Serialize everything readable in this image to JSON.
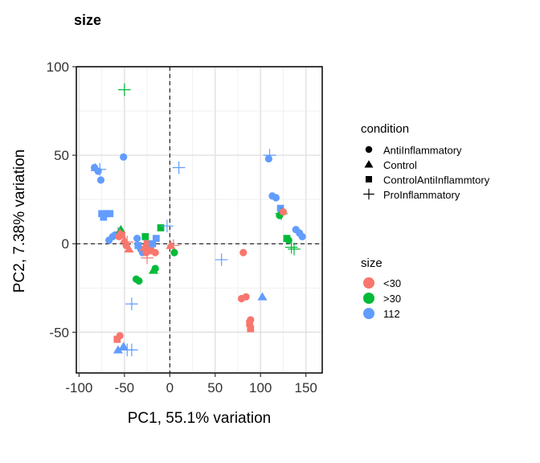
{
  "chart_data": {
    "type": "scatter",
    "title": "size",
    "xlabel": "PC1, 55.1% variation",
    "ylabel": "PC2, 7.38% variation",
    "xlim": [
      -103,
      168
    ],
    "ylim": [
      -73,
      100
    ],
    "xticks": [
      "-100",
      "-50",
      "0",
      "50",
      "100",
      "150"
    ],
    "xtick_values": [
      -100,
      -50,
      0,
      50,
      100,
      150
    ],
    "yticks": [
      "100",
      "50",
      "0",
      "-50"
    ],
    "ytick_values": [
      100,
      50,
      0,
      -50
    ],
    "grid": true,
    "reference_lines": {
      "x": 0,
      "y": 0,
      "style": "dashed"
    },
    "legend_placement": "right",
    "legends": {
      "shape": {
        "title": "condition",
        "items": [
          {
            "label": "AntiInflammatory",
            "shape": "circle"
          },
          {
            "label": "Control",
            "shape": "triangle"
          },
          {
            "label": "ControlAntiInflammtory",
            "shape": "square"
          },
          {
            "label": "ProInflammatory",
            "shape": "plus"
          }
        ]
      },
      "color": {
        "title": "size",
        "items": [
          {
            "label": "<30",
            "color": "#F8766D"
          },
          {
            "label": ">30",
            "color": "#00BA38"
          },
          {
            "label": "112",
            "color": "#619CFF"
          }
        ]
      }
    },
    "points": [
      {
        "x": -50,
        "y": 87,
        "shape": "plus",
        "group": ">30"
      },
      {
        "x": -82,
        "y": 43,
        "shape": "triangle",
        "group": "112"
      },
      {
        "x": -83,
        "y": 43,
        "shape": "circle",
        "group": "112"
      },
      {
        "x": -79,
        "y": 41,
        "shape": "circle",
        "group": "112"
      },
      {
        "x": -77,
        "y": 42,
        "shape": "plus",
        "group": "112"
      },
      {
        "x": -76,
        "y": 36,
        "shape": "circle",
        "group": "112"
      },
      {
        "x": -51,
        "y": 49,
        "shape": "circle",
        "group": "112"
      },
      {
        "x": 10,
        "y": 43,
        "shape": "plus",
        "group": "112"
      },
      {
        "x": 110,
        "y": 50,
        "shape": "plus",
        "group": "112"
      },
      {
        "x": 109,
        "y": 48,
        "shape": "circle",
        "group": "112"
      },
      {
        "x": 113,
        "y": 27,
        "shape": "circle",
        "group": "112"
      },
      {
        "x": 117,
        "y": 26,
        "shape": "circle",
        "group": "112"
      },
      {
        "x": 122,
        "y": 20,
        "shape": "square",
        "group": "112"
      },
      {
        "x": 123,
        "y": 17,
        "shape": "plus",
        "group": ">30"
      },
      {
        "x": 121,
        "y": 16,
        "shape": "circle",
        "group": ">30"
      },
      {
        "x": 125,
        "y": 18,
        "shape": "circle",
        "group": "<30"
      },
      {
        "x": 129,
        "y": 3,
        "shape": "square",
        "group": ">30"
      },
      {
        "x": 131,
        "y": 2,
        "shape": "circle",
        "group": ">30"
      },
      {
        "x": 134,
        "y": -2,
        "shape": "plus",
        "group": ">30"
      },
      {
        "x": 137,
        "y": -3,
        "shape": "plus",
        "group": ">30"
      },
      {
        "x": 139,
        "y": 8,
        "shape": "circle",
        "group": "112"
      },
      {
        "x": 143,
        "y": 6,
        "shape": "circle",
        "group": "112"
      },
      {
        "x": 146,
        "y": 4,
        "shape": "circle",
        "group": "112"
      },
      {
        "x": -75,
        "y": 17,
        "shape": "square",
        "group": "112"
      },
      {
        "x": -73,
        "y": 15,
        "shape": "square",
        "group": "112"
      },
      {
        "x": -70,
        "y": 17,
        "shape": "square",
        "group": "112"
      },
      {
        "x": -66,
        "y": 17,
        "shape": "square",
        "group": "112"
      },
      {
        "x": -67,
        "y": 2,
        "shape": "circle",
        "group": "112"
      },
      {
        "x": -63,
        "y": 4,
        "shape": "circle",
        "group": "112"
      },
      {
        "x": -60,
        "y": 5,
        "shape": "circle",
        "group": "112"
      },
      {
        "x": -57,
        "y": 6,
        "shape": "plus",
        "group": "112"
      },
      {
        "x": -54,
        "y": 8,
        "shape": "triangle",
        "group": ">30"
      },
      {
        "x": -55,
        "y": 6,
        "shape": "triangle",
        "group": "<30"
      },
      {
        "x": -53,
        "y": 5,
        "shape": "square",
        "group": "<30"
      },
      {
        "x": -56,
        "y": 4,
        "shape": "circle",
        "group": "<30"
      },
      {
        "x": -50,
        "y": 2,
        "shape": "triangle",
        "group": "<30"
      },
      {
        "x": -47,
        "y": 1,
        "shape": "plus",
        "group": "<30"
      },
      {
        "x": -48,
        "y": -1,
        "shape": "circle",
        "group": "<30"
      },
      {
        "x": -45,
        "y": -3,
        "shape": "triangle",
        "group": "<30"
      },
      {
        "x": -36,
        "y": 3,
        "shape": "circle",
        "group": "112"
      },
      {
        "x": -35,
        "y": -1,
        "shape": "square",
        "group": "112"
      },
      {
        "x": -32,
        "y": -3,
        "shape": "circle",
        "group": "112"
      },
      {
        "x": -30,
        "y": -5,
        "shape": "circle",
        "group": "112"
      },
      {
        "x": -27,
        "y": 4,
        "shape": "square",
        "group": ">30"
      },
      {
        "x": -28,
        "y": -2,
        "shape": "triangle",
        "group": "<30"
      },
      {
        "x": -25,
        "y": 0,
        "shape": "square",
        "group": "<30"
      },
      {
        "x": -26,
        "y": -5,
        "shape": "circle",
        "group": "<30"
      },
      {
        "x": -25,
        "y": -8,
        "shape": "plus",
        "group": "<30"
      },
      {
        "x": -23,
        "y": -3,
        "shape": "circle",
        "group": "<30"
      },
      {
        "x": -21,
        "y": -4,
        "shape": "square",
        "group": "<30"
      },
      {
        "x": -19,
        "y": 0,
        "shape": "square",
        "group": "112"
      },
      {
        "x": -15,
        "y": 3,
        "shape": "square",
        "group": "112"
      },
      {
        "x": -16,
        "y": -5,
        "shape": "circle",
        "group": "<30"
      },
      {
        "x": -18,
        "y": -15,
        "shape": "triangle",
        "group": ">30"
      },
      {
        "x": -16,
        "y": -14,
        "shape": "circle",
        "group": ">30"
      },
      {
        "x": -10,
        "y": 9,
        "shape": "square",
        "group": ">30"
      },
      {
        "x": -3,
        "y": 10,
        "shape": "plus",
        "group": "112"
      },
      {
        "x": 1,
        "y": -1,
        "shape": "triangle",
        "group": "<30"
      },
      {
        "x": 4,
        "y": -1,
        "shape": "plus",
        "group": "<30"
      },
      {
        "x": 5,
        "y": -5,
        "shape": "circle",
        "group": ">30"
      },
      {
        "x": -37,
        "y": -20,
        "shape": "circle",
        "group": ">30"
      },
      {
        "x": -34,
        "y": -21,
        "shape": "circle",
        "group": ">30"
      },
      {
        "x": -42,
        "y": -34,
        "shape": "plus",
        "group": "112"
      },
      {
        "x": 57,
        "y": -9,
        "shape": "plus",
        "group": "112"
      },
      {
        "x": 81,
        "y": -5,
        "shape": "circle",
        "group": "<30"
      },
      {
        "x": 79,
        "y": -31,
        "shape": "circle",
        "group": "<30"
      },
      {
        "x": 84,
        "y": -30,
        "shape": "circle",
        "group": "<30"
      },
      {
        "x": 89,
        "y": -43,
        "shape": "circle",
        "group": "<30"
      },
      {
        "x": 88,
        "y": -45,
        "shape": "square",
        "group": "<30"
      },
      {
        "x": 89,
        "y": -48,
        "shape": "square",
        "group": "<30"
      },
      {
        "x": 102,
        "y": -30,
        "shape": "triangle",
        "group": "112"
      },
      {
        "x": -55,
        "y": -52,
        "shape": "circle",
        "group": "<30"
      },
      {
        "x": -58,
        "y": -54,
        "shape": "square",
        "group": "<30"
      },
      {
        "x": -57,
        "y": -60,
        "shape": "triangle",
        "group": "112"
      },
      {
        "x": -51,
        "y": -58,
        "shape": "triangle",
        "group": "112"
      },
      {
        "x": -47,
        "y": -60,
        "shape": "plus",
        "group": "112"
      },
      {
        "x": -42,
        "y": -60,
        "shape": "plus",
        "group": "112"
      }
    ]
  }
}
